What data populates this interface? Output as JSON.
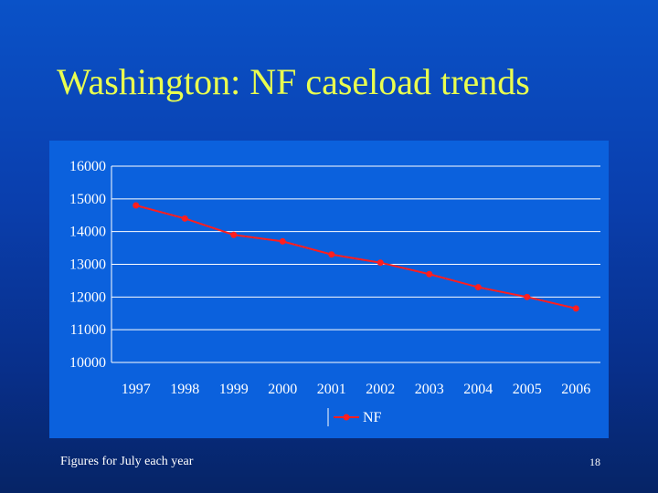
{
  "slide": {
    "title": "Washington: NF caseload trends",
    "footnote": "Figures for July each year",
    "page_number": "18"
  },
  "colors": {
    "title": "#eaff4f",
    "series_line": "#ff1e1e",
    "grid": "#ffffff",
    "panel": "#0b61dd"
  },
  "chart_data": {
    "type": "line",
    "title": "",
    "xlabel": "",
    "ylabel": "",
    "categories": [
      "1997",
      "1998",
      "1999",
      "2000",
      "2001",
      "2002",
      "2003",
      "2004",
      "2005",
      "2006"
    ],
    "series": [
      {
        "name": "NF",
        "values": [
          14800,
          14400,
          13900,
          13700,
          13300,
          13050,
          12700,
          12300,
          12000,
          11650
        ]
      }
    ],
    "ylim": [
      10000,
      16000
    ],
    "yticks": [
      10000,
      11000,
      12000,
      13000,
      14000,
      15000,
      16000
    ],
    "grid": true,
    "legend_position": "bottom-center"
  }
}
